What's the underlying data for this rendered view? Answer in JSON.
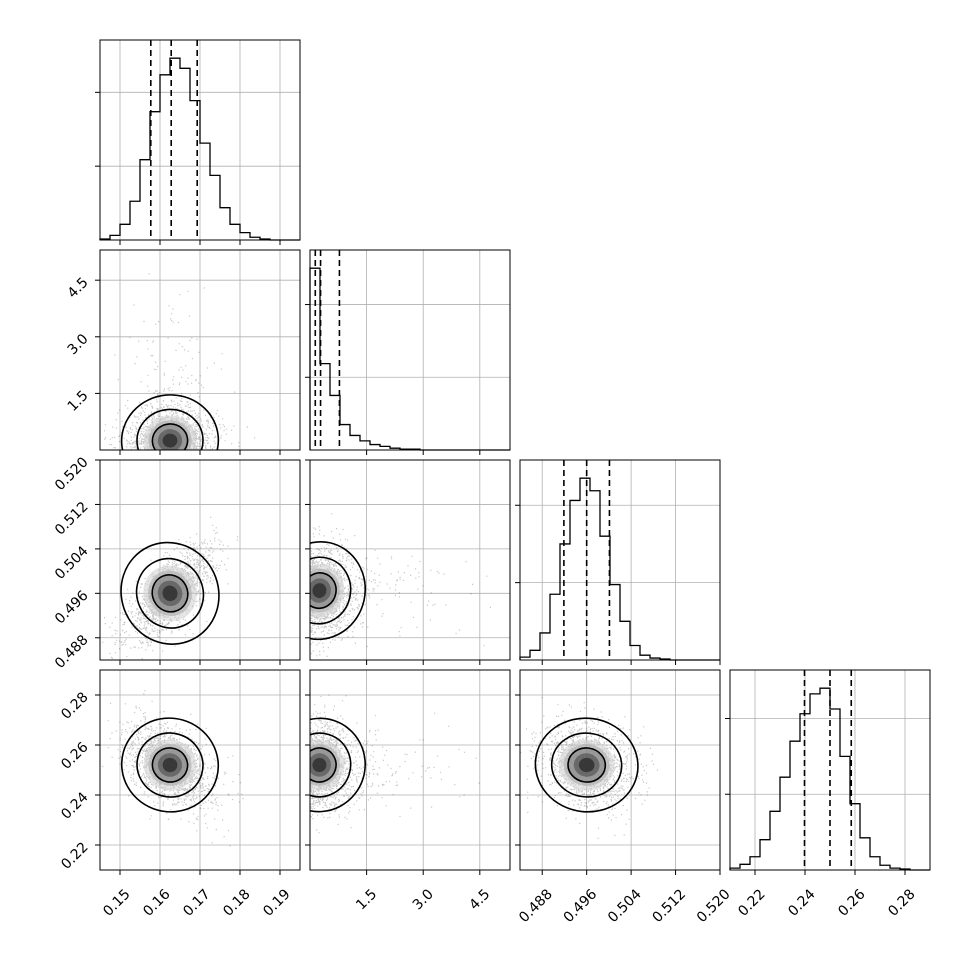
{
  "chart_data": {
    "type": "corner",
    "grid": true,
    "colors": {
      "ink": "#000000",
      "grid": "#b0b0b0",
      "scatter": "#000000"
    },
    "params": [
      {
        "range": [
          0.145,
          0.195
        ],
        "ticks": [
          0.15,
          0.16,
          0.17,
          0.18,
          0.19
        ],
        "tick_labels": [
          "0.15",
          "0.16",
          "0.17",
          "0.18",
          "0.19"
        ],
        "quantiles": [
          0.1577,
          0.1628,
          0.1693
        ]
      },
      {
        "range": [
          0.0,
          5.3
        ],
        "ticks": [
          1.5,
          3.0,
          4.5
        ],
        "tick_labels": [
          "1.5",
          "3.0",
          "4.5"
        ],
        "quantiles": [
          0.14,
          0.28,
          0.78
        ]
      },
      {
        "range": [
          0.484,
          0.52
        ],
        "ticks": [
          0.488,
          0.496,
          0.504,
          0.512,
          0.52
        ],
        "tick_labels": [
          "0.488",
          "0.496",
          "0.504",
          "0.512",
          "0.520"
        ],
        "quantiles": [
          0.4919,
          0.496,
          0.5001
        ]
      },
      {
        "range": [
          0.21,
          0.29
        ],
        "ticks": [
          0.22,
          0.24,
          0.26,
          0.28
        ],
        "tick_labels": [
          "0.22",
          "0.24",
          "0.26",
          "0.28"
        ],
        "quantiles": [
          0.2398,
          0.25,
          0.2585
        ]
      }
    ],
    "histograms": [
      {
        "param": 0,
        "bin_edges": [
          0.145,
          0.1475,
          0.15,
          0.1525,
          0.155,
          0.1575,
          0.16,
          0.1625,
          0.165,
          0.1675,
          0.17,
          0.1725,
          0.175,
          0.1775,
          0.18,
          0.1825,
          0.185,
          0.1875,
          0.19,
          0.1925,
          0.195
        ],
        "counts": [
          1,
          5,
          17,
          42,
          87,
          139,
          179,
          197,
          186,
          151,
          105,
          70,
          35,
          17,
          8,
          3,
          1,
          0,
          0,
          0
        ]
      },
      {
        "param": 1,
        "bin_edges": [
          0.0,
          0.265,
          0.53,
          0.795,
          1.06,
          1.325,
          1.59,
          1.855,
          2.12,
          2.385,
          2.65,
          2.915,
          3.18,
          3.445,
          3.71,
          3.975,
          4.24,
          4.505,
          4.77,
          5.035,
          5.3
        ],
        "counts": [
          200,
          95,
          60,
          28,
          16,
          10,
          6,
          4,
          2,
          1,
          1,
          0,
          0,
          0,
          0,
          0,
          0,
          0,
          0,
          0
        ]
      },
      {
        "param": 2,
        "bin_edges": [
          0.484,
          0.4858,
          0.4876,
          0.4894,
          0.4912,
          0.493,
          0.4948,
          0.4966,
          0.4984,
          0.5002,
          0.502,
          0.5038,
          0.5056,
          0.5074,
          0.5092,
          0.511,
          0.5128,
          0.5146,
          0.5164,
          0.5182,
          0.52
        ],
        "counts": [
          3,
          10,
          28,
          68,
          120,
          165,
          188,
          175,
          128,
          78,
          40,
          15,
          5,
          2,
          1,
          0,
          0,
          0,
          0,
          0
        ]
      },
      {
        "param": 3,
        "bin_edges": [
          0.21,
          0.214,
          0.218,
          0.222,
          0.226,
          0.23,
          0.234,
          0.238,
          0.242,
          0.246,
          0.25,
          0.254,
          0.258,
          0.262,
          0.266,
          0.27,
          0.274,
          0.278,
          0.282,
          0.286,
          0.29
        ],
        "counts": [
          2,
          6,
          14,
          32,
          62,
          98,
          136,
          165,
          186,
          192,
          170,
          120,
          70,
          34,
          14,
          5,
          2,
          1,
          0,
          0
        ]
      }
    ],
    "pairs": [
      {
        "x_param": 0,
        "y_param": 1,
        "center": [
          0.1625,
          0.25
        ],
        "sd": [
          0.0055,
          0.55
        ],
        "corr": 0.15,
        "clip_y_min": 0.0
      },
      {
        "x_param": 0,
        "y_param": 2,
        "center": [
          0.1625,
          0.496
        ],
        "sd": [
          0.0055,
          0.0042
        ],
        "corr": 0.72
      },
      {
        "x_param": 1,
        "y_param": 2,
        "center": [
          0.25,
          0.4965
        ],
        "sd": [
          0.55,
          0.004
        ],
        "corr": -0.35,
        "clip_x_min": 0.0
      },
      {
        "x_param": 0,
        "y_param": 3,
        "center": [
          0.1625,
          0.252
        ],
        "sd": [
          0.0055,
          0.0085
        ],
        "corr": -0.45
      },
      {
        "x_param": 1,
        "y_param": 3,
        "center": [
          0.25,
          0.252
        ],
        "sd": [
          0.55,
          0.0085
        ],
        "corr": -0.5,
        "clip_x_min": 0.0
      },
      {
        "x_param": 2,
        "y_param": 3,
        "center": [
          0.496,
          0.252
        ],
        "sd": [
          0.0042,
          0.0085
        ],
        "corr": -0.2
      }
    ]
  }
}
